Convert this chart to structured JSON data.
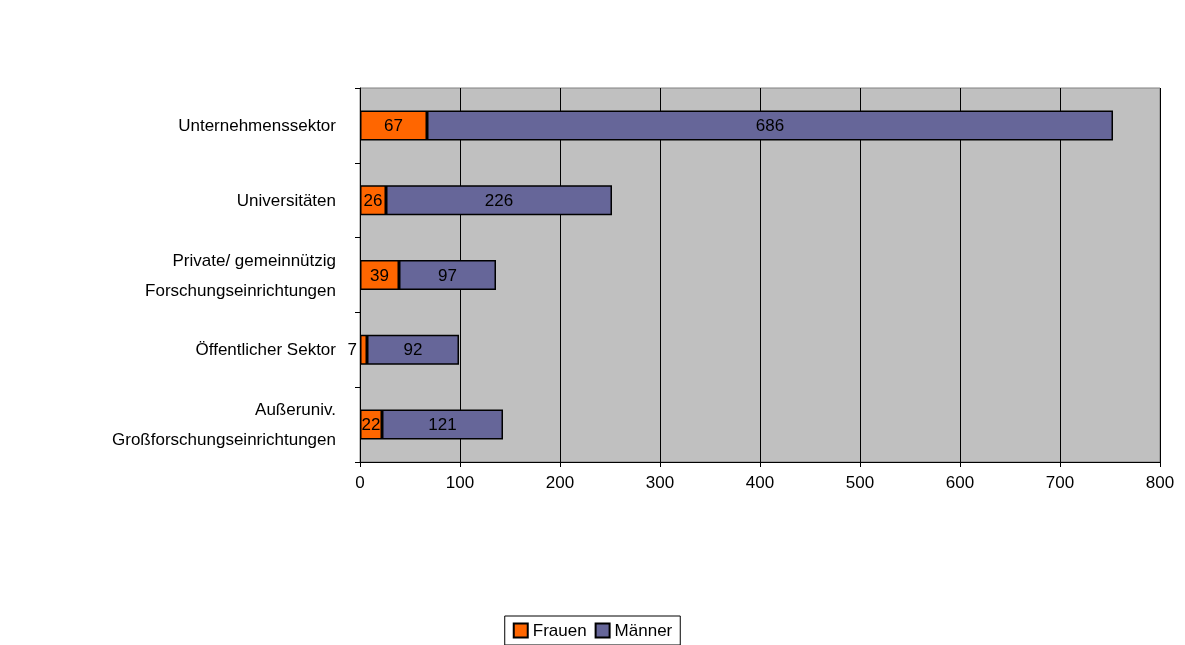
{
  "chart_data": {
    "type": "bar",
    "orientation": "horizontal",
    "stacked": true,
    "categories": [
      "Unternehmenssektor",
      "Universitäten",
      "Private/ gemeinnützig\nForschungseinrichtungen",
      "Öffentlicher Sektor",
      "Außeruniv.\nGroßforschungseinrichtungen"
    ],
    "series": [
      {
        "name": "Frauen",
        "color": "#ff6600",
        "values": [
          67,
          26,
          39,
          7,
          22
        ]
      },
      {
        "name": "Männer",
        "color": "#666699",
        "values": [
          686,
          226,
          97,
          92,
          121
        ]
      }
    ],
    "xlim": [
      0,
      800
    ],
    "xticks": [
      0,
      100,
      200,
      300,
      400,
      500,
      600,
      700,
      800
    ],
    "grid": "x",
    "legend": "bottom",
    "data_labels": true
  }
}
